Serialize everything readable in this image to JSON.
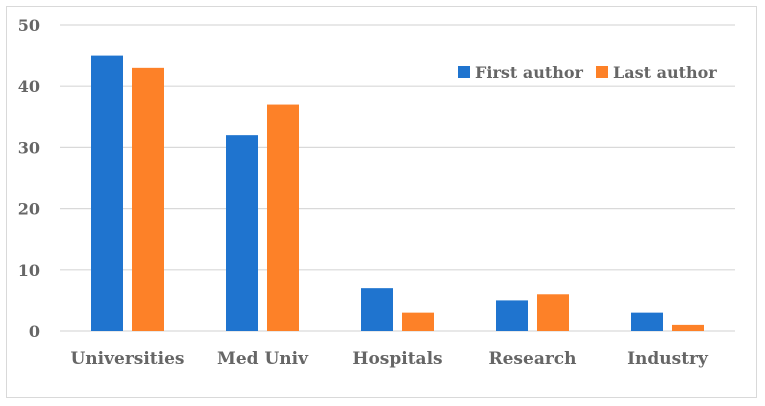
{
  "chart_data": {
    "type": "bar",
    "categories": [
      "Universities",
      "Med Univ",
      "Hospitals",
      "Research",
      "Industry"
    ],
    "series": [
      {
        "name": "First author",
        "color": "#1f74cf",
        "values": [
          45,
          32,
          7,
          5,
          3
        ]
      },
      {
        "name": "Last author",
        "color": "#fd8128",
        "values": [
          43,
          37,
          3,
          6,
          1
        ]
      }
    ],
    "y_ticks": [
      "0",
      "10",
      "20",
      "30",
      "40",
      "50"
    ],
    "ylim": [
      0,
      50
    ],
    "grid": true,
    "legend_position": "top-right"
  }
}
